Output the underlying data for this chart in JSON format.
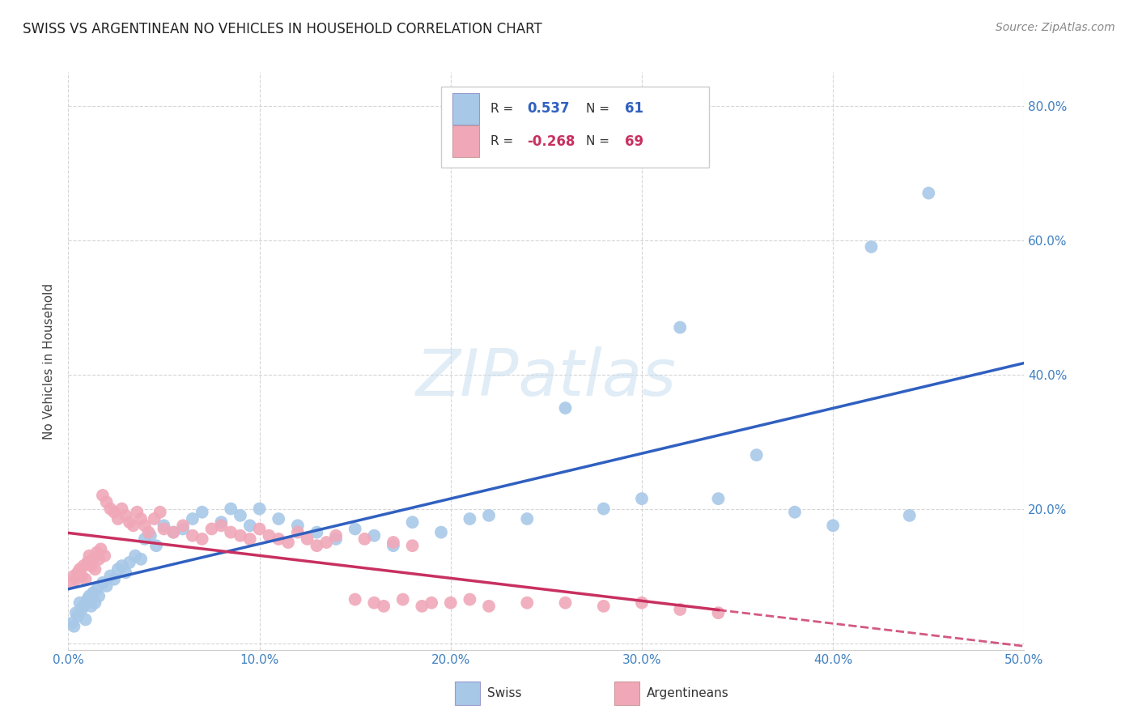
{
  "title": "SWISS VS ARGENTINEAN NO VEHICLES IN HOUSEHOLD CORRELATION CHART",
  "source": "Source: ZipAtlas.com",
  "ylabel": "No Vehicles in Household",
  "xlim": [
    0.0,
    0.5
  ],
  "ylim": [
    -0.01,
    0.85
  ],
  "xticks": [
    0.0,
    0.1,
    0.2,
    0.3,
    0.4,
    0.5
  ],
  "yticks": [
    0.0,
    0.2,
    0.4,
    0.6,
    0.8
  ],
  "xticklabels": [
    "0.0%",
    "10.0%",
    "20.0%",
    "30.0%",
    "40.0%",
    "50.0%"
  ],
  "yticklabels_left": [
    "",
    "",
    "",
    "",
    ""
  ],
  "yticklabels_right": [
    "",
    "20.0%",
    "40.0%",
    "60.0%",
    "80.0%"
  ],
  "swiss_color": "#a8c8e8",
  "argentinean_color": "#f0a8b8",
  "swiss_line_color": "#3060c0",
  "argentinean_line_color": "#c83060",
  "background_color": "#ffffff",
  "grid_color": "#cccccc",
  "watermark": "ZIPatlas",
  "legend_R_swiss": "0.537",
  "legend_N_swiss": "61",
  "legend_R_arg": "-0.268",
  "legend_N_arg": "69",
  "swiss_x": [
    0.002,
    0.003,
    0.004,
    0.005,
    0.006,
    0.007,
    0.008,
    0.009,
    0.01,
    0.011,
    0.012,
    0.013,
    0.014,
    0.015,
    0.016,
    0.018,
    0.02,
    0.022,
    0.024,
    0.026,
    0.028,
    0.03,
    0.032,
    0.035,
    0.038,
    0.04,
    0.043,
    0.046,
    0.05,
    0.055,
    0.06,
    0.065,
    0.07,
    0.08,
    0.085,
    0.09,
    0.095,
    0.1,
    0.11,
    0.12,
    0.13,
    0.14,
    0.15,
    0.16,
    0.17,
    0.18,
    0.195,
    0.21,
    0.22,
    0.24,
    0.26,
    0.28,
    0.3,
    0.32,
    0.34,
    0.36,
    0.38,
    0.4,
    0.42,
    0.44,
    0.45
  ],
  "swiss_y": [
    0.03,
    0.025,
    0.045,
    0.04,
    0.06,
    0.05,
    0.055,
    0.035,
    0.065,
    0.07,
    0.055,
    0.075,
    0.06,
    0.08,
    0.07,
    0.09,
    0.085,
    0.1,
    0.095,
    0.11,
    0.115,
    0.105,
    0.12,
    0.13,
    0.125,
    0.155,
    0.16,
    0.145,
    0.175,
    0.165,
    0.17,
    0.185,
    0.195,
    0.18,
    0.2,
    0.19,
    0.175,
    0.2,
    0.185,
    0.175,
    0.165,
    0.155,
    0.17,
    0.16,
    0.145,
    0.18,
    0.165,
    0.185,
    0.19,
    0.185,
    0.35,
    0.2,
    0.215,
    0.47,
    0.215,
    0.28,
    0.195,
    0.175,
    0.59,
    0.19,
    0.67
  ],
  "arg_x": [
    0.002,
    0.003,
    0.004,
    0.005,
    0.006,
    0.007,
    0.008,
    0.009,
    0.01,
    0.011,
    0.012,
    0.013,
    0.014,
    0.015,
    0.016,
    0.017,
    0.018,
    0.019,
    0.02,
    0.022,
    0.024,
    0.026,
    0.028,
    0.03,
    0.032,
    0.034,
    0.036,
    0.038,
    0.04,
    0.042,
    0.045,
    0.048,
    0.05,
    0.055,
    0.06,
    0.065,
    0.07,
    0.075,
    0.08,
    0.085,
    0.09,
    0.095,
    0.1,
    0.105,
    0.11,
    0.115,
    0.12,
    0.125,
    0.13,
    0.135,
    0.14,
    0.15,
    0.155,
    0.16,
    0.165,
    0.17,
    0.175,
    0.18,
    0.185,
    0.19,
    0.2,
    0.21,
    0.22,
    0.24,
    0.26,
    0.28,
    0.3,
    0.32,
    0.34
  ],
  "arg_y": [
    0.09,
    0.1,
    0.095,
    0.105,
    0.11,
    0.1,
    0.115,
    0.095,
    0.12,
    0.13,
    0.115,
    0.125,
    0.11,
    0.135,
    0.125,
    0.14,
    0.22,
    0.13,
    0.21,
    0.2,
    0.195,
    0.185,
    0.2,
    0.19,
    0.18,
    0.175,
    0.195,
    0.185,
    0.175,
    0.165,
    0.185,
    0.195,
    0.17,
    0.165,
    0.175,
    0.16,
    0.155,
    0.17,
    0.175,
    0.165,
    0.16,
    0.155,
    0.17,
    0.16,
    0.155,
    0.15,
    0.165,
    0.155,
    0.145,
    0.15,
    0.16,
    0.065,
    0.155,
    0.06,
    0.055,
    0.15,
    0.065,
    0.145,
    0.055,
    0.06,
    0.06,
    0.065,
    0.055,
    0.06,
    0.06,
    0.055,
    0.06,
    0.05,
    0.045
  ]
}
